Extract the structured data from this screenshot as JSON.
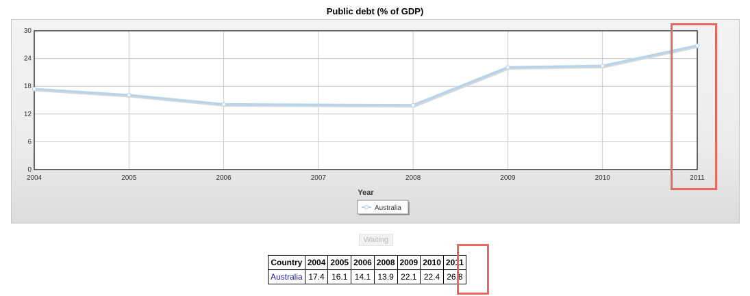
{
  "chart_data": {
    "type": "line",
    "title": "Public debt (% of GDP)",
    "xlabel": "Year",
    "ylabel": "",
    "x": [
      "2004",
      "2005",
      "2006",
      "2007",
      "2008",
      "2009",
      "2010",
      "2011"
    ],
    "ylim": [
      0,
      30
    ],
    "yticks": [
      0,
      6,
      12,
      18,
      24,
      30
    ],
    "grid": true,
    "legend_position": "bottom-center",
    "series": [
      {
        "name": "Australia",
        "values": [
          17.4,
          16.1,
          14.1,
          null,
          13.9,
          22.1,
          22.4,
          26.8
        ],
        "color": "#b8d4ea"
      }
    ]
  },
  "controls": {
    "waiting_label": "Waiting"
  },
  "table": {
    "headers": [
      "Country",
      "2004",
      "2005",
      "2006",
      "2008",
      "2009",
      "2010",
      "2011"
    ],
    "rows": [
      {
        "country": "Australia",
        "values": [
          "17.4",
          "16.1",
          "14.1",
          "13.9",
          "22.1",
          "22.4",
          "26.8"
        ]
      }
    ]
  },
  "colors": {
    "highlight": "#e8675f",
    "link": "#1a1aa6",
    "line": "#b8d4ea"
  }
}
